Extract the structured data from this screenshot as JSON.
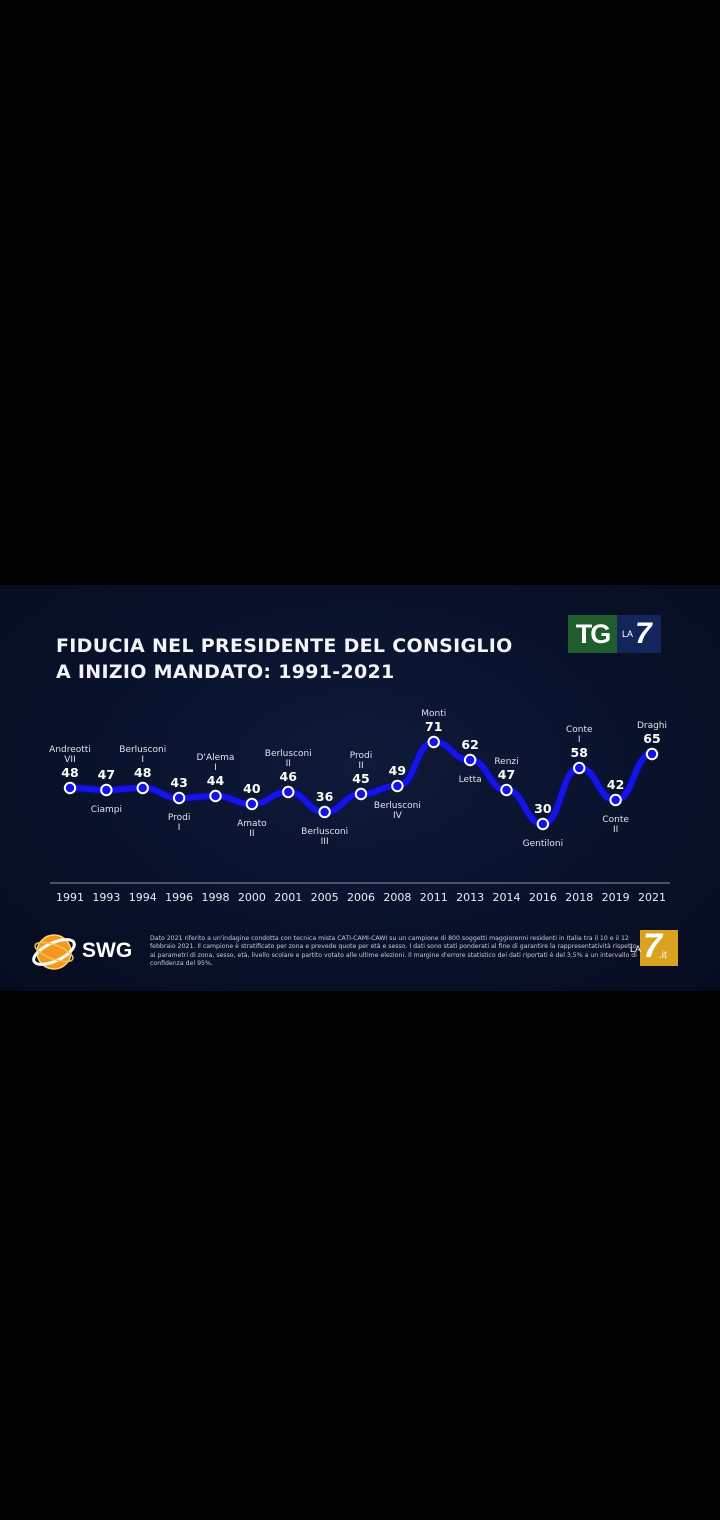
{
  "title_line1": "FIDUCIA NEL PRESIDENTE DEL CONSIGLIO",
  "title_line2": "A INIZIO MANDATO: 1991-2021",
  "tg_logo": {
    "tg": "TG",
    "la": "LA",
    "seven": "7"
  },
  "swg_logo": {
    "text": "SWG"
  },
  "la7_logo": {
    "la": "LA",
    "seven": "7",
    "it": ".it"
  },
  "footer_note": "Dato 2021 riferito a un'indagine condotta con tecnica mista CATI-CAMI-CAWI su un campione di 800 soggetti maggiorenni residenti in Italia tra il 10 e il 12 febbraio 2021. Il campione è stratificato per zona e prevede quote per età e sesso. I dati sono stati ponderati al fine di garantire la rappresentatività rispetto ai parametri di zona, sesso, età, livello scolare e partito votato alle ultime elezioni. Il margine d'errore statistico dei dati riportati è del 3,5% a un intervallo di confidenza del 95%.",
  "colors": {
    "line": "#1414e6",
    "background": "#09122b",
    "point_fill": "#ffffff",
    "text": "#e8ecf4"
  },
  "chart_data": {
    "type": "line",
    "title": "FIDUCIA NEL PRESIDENTE DEL CONSIGLIO A INIZIO MANDATO: 1991-2021",
    "categories": [
      "1991",
      "1993",
      "1994",
      "1996",
      "1998",
      "2000",
      "2001",
      "2005",
      "2006",
      "2008",
      "2011",
      "2013",
      "2014",
      "2016",
      "2018",
      "2019",
      "2021"
    ],
    "series": [
      {
        "values": [
          48,
          47,
          48,
          43,
          44,
          40,
          46,
          36,
          45,
          49,
          71,
          62,
          47,
          30,
          58,
          42,
          65
        ]
      }
    ],
    "point_labels": [
      {
        "lines": [
          "Andreotti",
          "VII"
        ],
        "position": "above"
      },
      {
        "lines": [
          "Ciampi"
        ],
        "position": "below"
      },
      {
        "lines": [
          "Berlusconi",
          "I"
        ],
        "position": "above"
      },
      {
        "lines": [
          "Prodi",
          "I"
        ],
        "position": "below"
      },
      {
        "lines": [
          "D'Alema",
          "I"
        ],
        "position": "above"
      },
      {
        "lines": [
          "Amato",
          "II"
        ],
        "position": "below"
      },
      {
        "lines": [
          "Berlusconi",
          "II"
        ],
        "position": "above"
      },
      {
        "lines": [
          "Berlusconi",
          "III"
        ],
        "position": "below"
      },
      {
        "lines": [
          "Prodi",
          "II"
        ],
        "position": "above"
      },
      {
        "lines": [
          "Berlusconi",
          "IV"
        ],
        "position": "below"
      },
      {
        "lines": [
          "Monti"
        ],
        "position": "above"
      },
      {
        "lines": [
          "Letta"
        ],
        "position": "below"
      },
      {
        "lines": [
          "Renzi"
        ],
        "position": "above"
      },
      {
        "lines": [
          "Gentiloni"
        ],
        "position": "below"
      },
      {
        "lines": [
          "Conte",
          "I"
        ],
        "position": "above"
      },
      {
        "lines": [
          "Conte",
          "II"
        ],
        "position": "below"
      },
      {
        "lines": [
          "Draghi"
        ],
        "position": "above"
      }
    ],
    "ylim": [
      25,
      75
    ],
    "grid": false,
    "legend": "none"
  }
}
